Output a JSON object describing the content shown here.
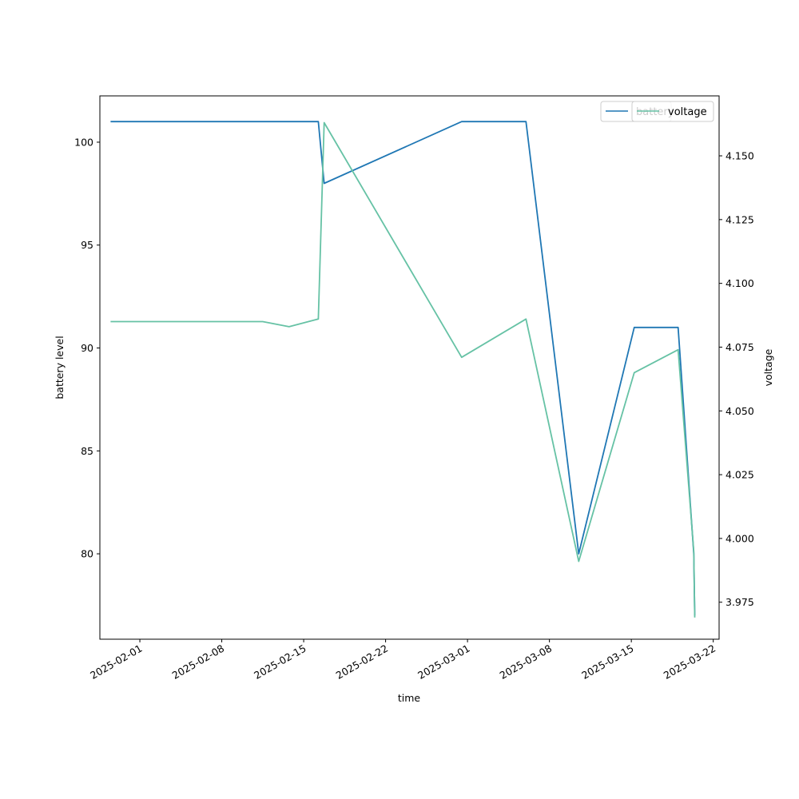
{
  "chart_data": {
    "type": "line",
    "xlabel": "time",
    "ylabel": "battery level",
    "y2label": "voltage",
    "x_axis_type": "date",
    "xlim": [
      "2025-01-28T14:00",
      "2025-03-22T12:00"
    ],
    "ylim": [
      75.85,
      102.25
    ],
    "y2lim": [
      3.9605,
      4.1735
    ],
    "x_ticks": [
      "2025-02-01",
      "2025-02-08",
      "2025-02-15",
      "2025-02-22",
      "2025-03-01",
      "2025-03-08",
      "2025-03-15",
      "2025-03-22"
    ],
    "y_ticks": [
      80,
      85,
      90,
      95,
      100
    ],
    "y2_ticks": [
      3.975,
      4.0,
      4.025,
      4.05,
      4.075,
      4.1,
      4.125,
      4.15
    ],
    "y2_tick_labels": [
      "3.975",
      "4.000",
      "4.025",
      "4.050",
      "4.075",
      "4.100",
      "4.125",
      "4.150"
    ],
    "grid": false,
    "legend_placement": "top-right",
    "series": [
      {
        "name": "battery",
        "axis": "left",
        "color": "#1f77b4",
        "x": [
          "2025-01-29T12:00",
          "2025-02-16T06:00",
          "2025-02-16T18:00",
          "2025-02-28T12:00",
          "2025-03-06T00:00",
          "2025-03-10T12:00",
          "2025-03-15T06:00",
          "2025-03-19T00:00",
          "2025-03-20T08:00",
          "2025-03-20T10:00"
        ],
        "values": [
          101,
          101,
          98,
          101,
          101,
          80,
          91,
          91,
          80,
          77
        ]
      },
      {
        "name": "voltage",
        "axis": "right",
        "color": "#66c2a5",
        "x": [
          "2025-01-29T12:00",
          "2025-02-11T12:00",
          "2025-02-13T18:00",
          "2025-02-16T06:00",
          "2025-02-16T18:00",
          "2025-02-28T12:00",
          "2025-03-06T00:00",
          "2025-03-10T12:00",
          "2025-03-15T06:00",
          "2025-03-19T00:00",
          "2025-03-20T08:00",
          "2025-03-20T10:00"
        ],
        "values": [
          4.085,
          4.085,
          4.083,
          4.086,
          4.163,
          4.071,
          4.086,
          3.991,
          4.065,
          4.074,
          3.995,
          3.969
        ]
      }
    ]
  }
}
